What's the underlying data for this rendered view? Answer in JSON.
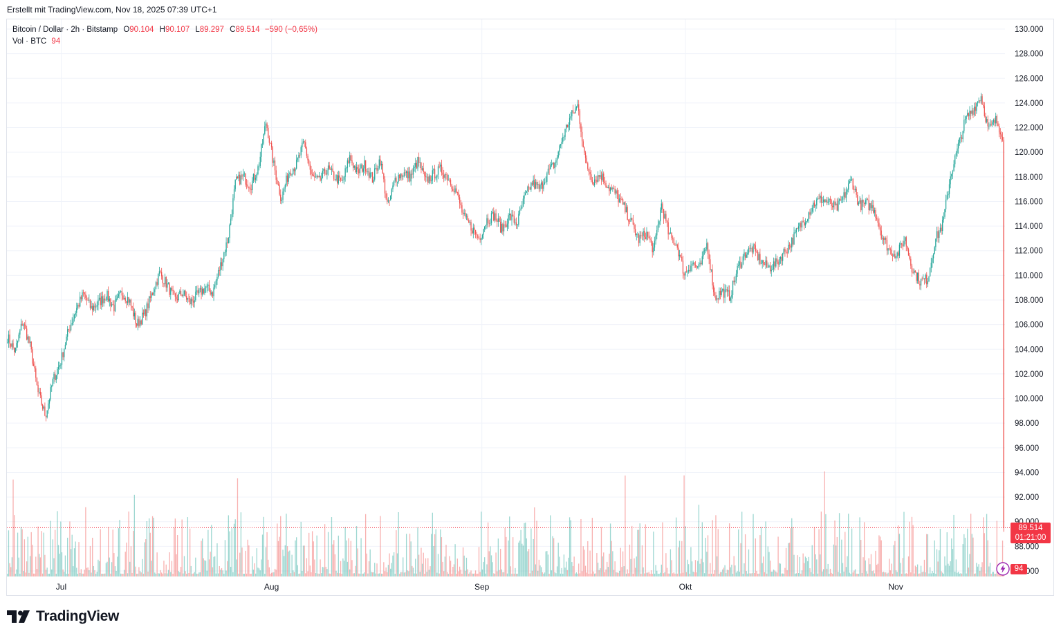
{
  "header": {
    "text": "Erstellt mit TradingView.com, Nov 18, 2025 07:39 UTC+1"
  },
  "legend": {
    "symbol": "Bitcoin / Dollar · 2h · Bitstamp",
    "open_key": "O",
    "open": "90.104",
    "high_key": "H",
    "high": "90.107",
    "low_key": "L",
    "low": "89.297",
    "close_key": "C",
    "close": "89.514",
    "change": "−590 (−0,65%)",
    "vol_label": "Vol · BTC",
    "vol_value": "94"
  },
  "price_tag": {
    "price": "89.514",
    "countdown": "01:21:00"
  },
  "volume_tag": "94",
  "brand": "TradingView",
  "colors": {
    "up": "#26a69a",
    "down": "#ef5350",
    "grid": "#f0f3fa",
    "text": "#131722",
    "tag": "#f23645"
  },
  "chart_data": {
    "type": "candlestick",
    "timeframe": "2h",
    "ylim": [
      86000,
      130500
    ],
    "y_ticks": [
      "130.000",
      "128.000",
      "126.000",
      "124.000",
      "122.000",
      "120.000",
      "118.000",
      "116.000",
      "114.000",
      "112.000",
      "110.000",
      "108.000",
      "106.000",
      "104.000",
      "102.000",
      "100.000",
      "98.000",
      "96.000",
      "94.000",
      "92.000",
      "90.000",
      "88.000",
      "86.000"
    ],
    "y_tick_values": [
      130000,
      128000,
      126000,
      124000,
      122000,
      120000,
      118000,
      116000,
      114000,
      112000,
      110000,
      108000,
      106000,
      104000,
      102000,
      100000,
      98000,
      96000,
      94000,
      92000,
      90000,
      88000,
      86000
    ],
    "x_ticks": [
      {
        "label": "Jul",
        "day": 8
      },
      {
        "label": "Aug",
        "day": 39
      },
      {
        "label": "Sep",
        "day": 70
      },
      {
        "label": "Okt",
        "day": 100
      },
      {
        "label": "Nov",
        "day": 131
      }
    ],
    "total_days": 147,
    "last_price": 89514,
    "series": [
      {
        "name": "BTC/USD close",
        "points": [
          [
            0,
            105000
          ],
          [
            1,
            103800
          ],
          [
            2,
            106300
          ],
          [
            3,
            104200
          ],
          [
            4,
            100500
          ],
          [
            5,
            98600
          ],
          [
            6,
            101500
          ],
          [
            7,
            103000
          ],
          [
            8,
            105500
          ],
          [
            9,
            107200
          ],
          [
            10,
            108500
          ],
          [
            11,
            107300
          ],
          [
            12,
            107800
          ],
          [
            13,
            108400
          ],
          [
            14,
            107400
          ],
          [
            15,
            108600
          ],
          [
            16,
            108000
          ],
          [
            17,
            106000
          ],
          [
            18,
            106800
          ],
          [
            19,
            108500
          ],
          [
            20,
            110200
          ],
          [
            21,
            109200
          ],
          [
            22,
            108000
          ],
          [
            23,
            108600
          ],
          [
            24,
            107800
          ],
          [
            25,
            108400
          ],
          [
            26,
            109000
          ],
          [
            27,
            108600
          ],
          [
            28,
            110800
          ],
          [
            29,
            113000
          ],
          [
            30,
            117600
          ],
          [
            31,
            118000
          ],
          [
            32,
            117300
          ],
          [
            33,
            118800
          ],
          [
            34,
            122500
          ],
          [
            35,
            119000
          ],
          [
            36,
            116200
          ],
          [
            37,
            118400
          ],
          [
            38,
            119000
          ],
          [
            39,
            120800
          ],
          [
            40,
            118000
          ],
          [
            41,
            117600
          ],
          [
            42,
            118700
          ],
          [
            43,
            118000
          ],
          [
            44,
            117500
          ],
          [
            45,
            119600
          ],
          [
            46,
            118300
          ],
          [
            47,
            119000
          ],
          [
            48,
            117800
          ],
          [
            49,
            119500
          ],
          [
            50,
            115500
          ],
          [
            51,
            117900
          ],
          [
            52,
            118300
          ],
          [
            53,
            118000
          ],
          [
            54,
            119300
          ],
          [
            55,
            117600
          ],
          [
            56,
            118200
          ],
          [
            57,
            118600
          ],
          [
            58,
            117900
          ],
          [
            59,
            116800
          ],
          [
            60,
            114700
          ],
          [
            61,
            113900
          ],
          [
            62,
            113000
          ],
          [
            63,
            114500
          ],
          [
            64,
            114900
          ],
          [
            65,
            113700
          ],
          [
            66,
            114800
          ],
          [
            67,
            114200
          ],
          [
            68,
            116300
          ],
          [
            69,
            117500
          ],
          [
            70,
            117000
          ],
          [
            71,
            118300
          ],
          [
            72,
            119100
          ],
          [
            73,
            121200
          ],
          [
            74,
            122800
          ],
          [
            75,
            123800
          ],
          [
            76,
            119200
          ],
          [
            77,
            117700
          ],
          [
            78,
            118200
          ],
          [
            79,
            117200
          ],
          [
            80,
            116600
          ],
          [
            81,
            115600
          ],
          [
            82,
            114300
          ],
          [
            83,
            112900
          ],
          [
            84,
            113400
          ],
          [
            85,
            112000
          ],
          [
            86,
            115800
          ],
          [
            87,
            113200
          ],
          [
            88,
            112500
          ],
          [
            89,
            110100
          ],
          [
            90,
            111000
          ],
          [
            91,
            110500
          ],
          [
            92,
            112600
          ],
          [
            93,
            108200
          ],
          [
            94,
            108700
          ],
          [
            95,
            108300
          ],
          [
            96,
            110500
          ],
          [
            97,
            111800
          ],
          [
            98,
            112200
          ],
          [
            99,
            111200
          ],
          [
            100,
            110600
          ],
          [
            101,
            110900
          ],
          [
            102,
            111800
          ],
          [
            103,
            112600
          ],
          [
            104,
            113800
          ],
          [
            105,
            114700
          ],
          [
            106,
            115800
          ],
          [
            107,
            116200
          ],
          [
            108,
            115900
          ],
          [
            109,
            115400
          ],
          [
            110,
            116400
          ],
          [
            111,
            117800
          ],
          [
            112,
            115700
          ],
          [
            113,
            115800
          ],
          [
            114,
            115400
          ],
          [
            115,
            113200
          ],
          [
            116,
            112000
          ],
          [
            117,
            111700
          ],
          [
            118,
            113000
          ],
          [
            119,
            110500
          ],
          [
            120,
            109500
          ],
          [
            121,
            109700
          ],
          [
            122,
            112900
          ],
          [
            123,
            114200
          ],
          [
            124,
            118100
          ],
          [
            125,
            120400
          ],
          [
            126,
            122700
          ],
          [
            127,
            123500
          ],
          [
            128,
            124600
          ],
          [
            129,
            121800
          ],
          [
            130,
            122600
          ],
          [
            131,
            121200
          ]
        ]
      }
    ]
  }
}
